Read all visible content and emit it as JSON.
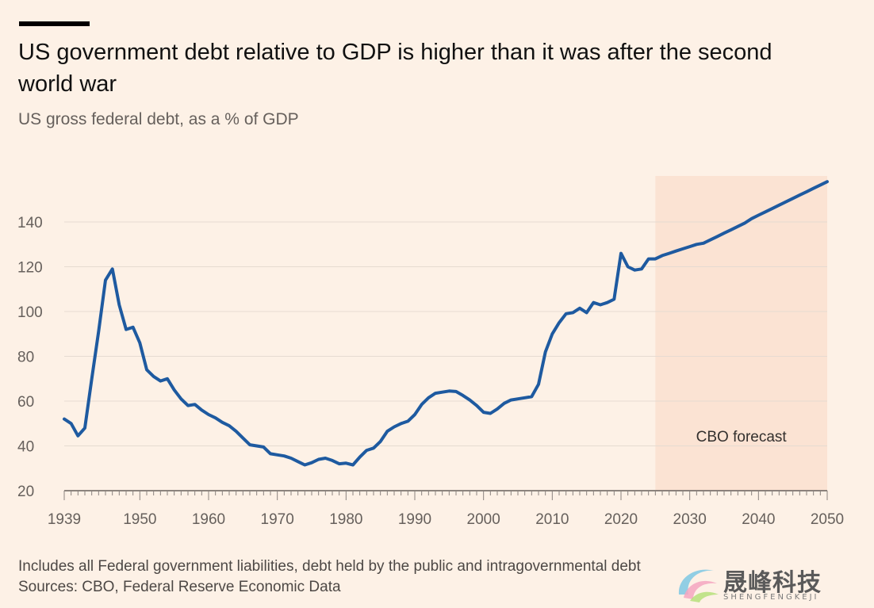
{
  "header": {
    "title": "US government debt relative to GDP is higher than it was after the second world war",
    "subtitle": "US gross federal debt, as a % of GDP"
  },
  "footer": {
    "note": "Includes all Federal government liabilities, debt held by the public and intragovernmental debt",
    "sources": "Sources: CBO, Federal Reserve Economic Data"
  },
  "watermark": {
    "text": "晟峰科技",
    "subtext": "SHENGFENGKEJI"
  },
  "colors": {
    "background": "#fdf1e6",
    "line": "#1e5aa0",
    "forecast_band": "#fbe3d3",
    "grid": "#e6dbd1"
  },
  "chart_data": {
    "type": "line",
    "title": "US government debt relative to GDP is higher than it was after the second world war",
    "subtitle": "US gross federal debt, as a % of GDP",
    "xlabel": "",
    "ylabel": "",
    "xlim": [
      1939,
      2050
    ],
    "ylim": [
      20,
      150
    ],
    "yticks": [
      20,
      40,
      60,
      80,
      100,
      120,
      140
    ],
    "xticks": [
      1939,
      1950,
      1960,
      1970,
      1980,
      1990,
      2000,
      2010,
      2020,
      2030,
      2040,
      2050
    ],
    "grid": true,
    "forecast_region": {
      "from": 2025,
      "to": 2050,
      "label": "CBO forecast"
    },
    "series": [
      {
        "x": [
          1939,
          1940,
          1941,
          1942,
          1943,
          1944,
          1945,
          1946,
          1947,
          1948,
          1949,
          1950,
          1951,
          1952,
          1953,
          1954,
          1955,
          1956,
          1957,
          1958,
          1959,
          1960,
          1961,
          1962,
          1963,
          1964,
          1965,
          1966,
          1967,
          1968,
          1969,
          1970,
          1971,
          1972,
          1973,
          1974,
          1975,
          1976,
          1977,
          1978,
          1979,
          1980,
          1981,
          1982,
          1983,
          1984,
          1985,
          1986,
          1987,
          1988,
          1989,
          1990,
          1991,
          1992,
          1993,
          1994,
          1995,
          1996,
          1997,
          1998,
          1999,
          2000,
          2001,
          2002,
          2003,
          2004,
          2005,
          2006,
          2007,
          2008,
          2009,
          2010,
          2011,
          2012,
          2013,
          2014,
          2015,
          2016,
          2017,
          2018,
          2019,
          2020,
          2021,
          2022,
          2023,
          2024,
          2025,
          2026,
          2027,
          2028,
          2029,
          2030,
          2031,
          2032,
          2033,
          2034,
          2035,
          2036,
          2037,
          2038,
          2039,
          2040,
          2041,
          2042,
          2043,
          2044,
          2045,
          2046,
          2047,
          2048,
          2049,
          2050
        ],
        "y": [
          52,
          50,
          44.5,
          48,
          70,
          91,
          114,
          119,
          103,
          92,
          93,
          86,
          74,
          71,
          69,
          70,
          65,
          61,
          58,
          58.5,
          56,
          54,
          52.5,
          50.5,
          49,
          46.5,
          43.5,
          40.5,
          40,
          39.5,
          36.5,
          36,
          35.5,
          34.5,
          33,
          31.5,
          32.5,
          34,
          34.5,
          33.5,
          32,
          32.3,
          31.5,
          35,
          38,
          39,
          42,
          46.5,
          48.5,
          50,
          51,
          54,
          58.5,
          61.5,
          63.5,
          64,
          64.5,
          64.3,
          62.5,
          60.5,
          58,
          55,
          54.5,
          56.5,
          59,
          60.5,
          61,
          61.5,
          62,
          67.5,
          82,
          90,
          95,
          99,
          99.5,
          101.5,
          99.5,
          104,
          103,
          104,
          105.5,
          126,
          120,
          118.5,
          119,
          123.5,
          123.5,
          125,
          126,
          127,
          128,
          129,
          130,
          130.5,
          132,
          133.5,
          135,
          136.5,
          138,
          139.5,
          141.5,
          143,
          144.5,
          146,
          147.5,
          149,
          150.5,
          152,
          153.5,
          155,
          156.5,
          158
        ]
      }
    ]
  }
}
